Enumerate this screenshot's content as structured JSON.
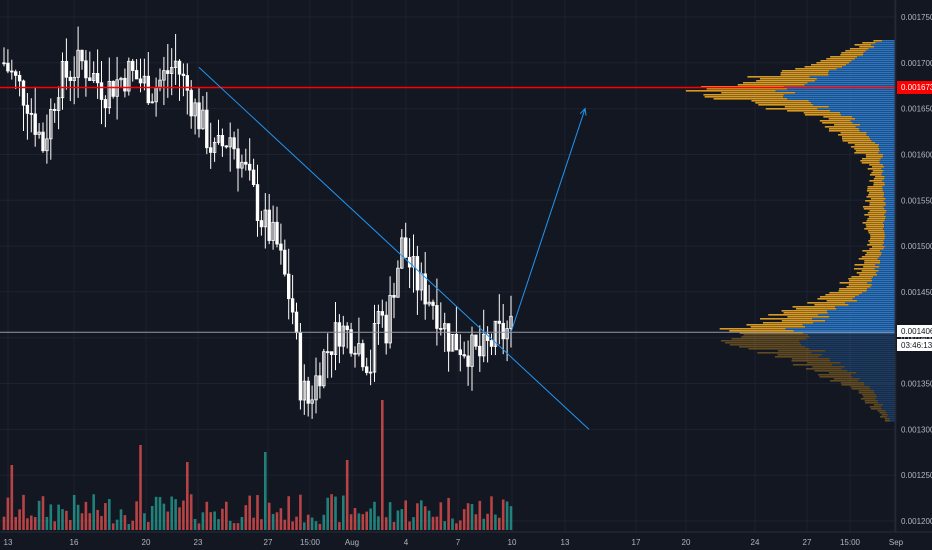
{
  "colors": {
    "background": "#131722",
    "grid": "#1e2230",
    "axis_text": "#b2b5be",
    "up_candle": "#ffffff",
    "down_candle": "#ffffff",
    "volume_up": "#26a69a",
    "volume_down": "#ef5350",
    "trendline": "#2196f3",
    "resistance": "#ff0000",
    "current_line": "#9598a1",
    "profile_blue": "#2d7fd6",
    "profile_orange": "#f0a821",
    "price_tag_bg": "#ff0000",
    "current_tag_bg": "#ffffff",
    "countdown_tag_bg": "#ffffff"
  },
  "chart_data": {
    "type": "candlestick",
    "title": "",
    "x_axis": {
      "ticks": [
        "13",
        "16",
        "20",
        "23",
        "27",
        "15:00",
        "Aug",
        "4",
        "7",
        "10",
        "13",
        "17",
        "20",
        "24",
        "27",
        "15:00",
        "Sep"
      ]
    },
    "y_axis": {
      "range": [
        0.00119,
        0.00176
      ],
      "ticks": [
        "0.001750",
        "0.001700",
        "0.001650",
        "0.001600",
        "0.001550",
        "0.001500",
        "0.001450",
        "0.001400",
        "0.001350",
        "0.001300",
        "0.001250",
        "0.001200"
      ]
    },
    "price_tags": {
      "resistance": "0.001673",
      "current": "0.001406",
      "countdown": "03:46:13"
    },
    "levels": {
      "resistance": 0.001673,
      "current": 0.001406
    },
    "price_path": [
      [
        0,
        0.0017
      ],
      [
        6,
        0.00166
      ],
      [
        10,
        0.00161
      ],
      [
        14,
        0.00168
      ],
      [
        20,
        0.0017
      ],
      [
        26,
        0.00167
      ],
      [
        32,
        0.00169
      ],
      [
        38,
        0.00167
      ],
      [
        44,
        0.0017
      ],
      [
        50,
        0.00164
      ],
      [
        54,
        0.0016
      ],
      [
        58,
        0.00162
      ],
      [
        62,
        0.00158
      ],
      [
        66,
        0.00153
      ],
      [
        70,
        0.0015
      ],
      [
        74,
        0.00143
      ],
      [
        76,
        0.00135
      ],
      [
        78,
        0.00133
      ],
      [
        82,
        0.00138
      ],
      [
        86,
        0.00141
      ],
      [
        90,
        0.0014
      ],
      [
        94,
        0.00137
      ],
      [
        96,
        0.00143
      ],
      [
        98,
        0.00141
      ],
      [
        100,
        0.00146
      ],
      [
        102,
        0.0015
      ],
      [
        106,
        0.00146
      ],
      [
        110,
        0.00144
      ],
      [
        114,
        0.0014
      ],
      [
        118,
        0.00139
      ],
      [
        122,
        0.00138
      ],
      [
        126,
        0.0014
      ],
      [
        130,
        0.00141
      ]
    ],
    "trendlines": [
      {
        "points": [
          [
            50,
            0.001695
          ],
          [
            150,
            0.0013
          ]
        ]
      },
      {
        "points": [
          [
            130,
            0.001406
          ],
          [
            149,
            0.00165
          ]
        ],
        "arrow": true
      }
    ],
    "volume_profile": {
      "levels": [
        0.00173,
        0.00171,
        0.00169,
        0.00168,
        0.00167,
        0.00166,
        0.00164,
        0.00161,
        0.00158,
        0.00154,
        0.0015,
        0.00147,
        0.00145,
        0.00143,
        0.00141,
        0.0014,
        0.00138,
        0.00136,
        0.00134,
        0.00131
      ],
      "blue": [
        8,
        35,
        70,
        95,
        120,
        90,
        45,
        15,
        12,
        10,
        12,
        20,
        30,
        60,
        100,
        95,
        70,
        40,
        20,
        5
      ],
      "orange": [
        5,
        25,
        50,
        70,
        90,
        60,
        30,
        25,
        10,
        20,
        15,
        20,
        30,
        40,
        60,
        80,
        40,
        30,
        15,
        5
      ]
    }
  }
}
